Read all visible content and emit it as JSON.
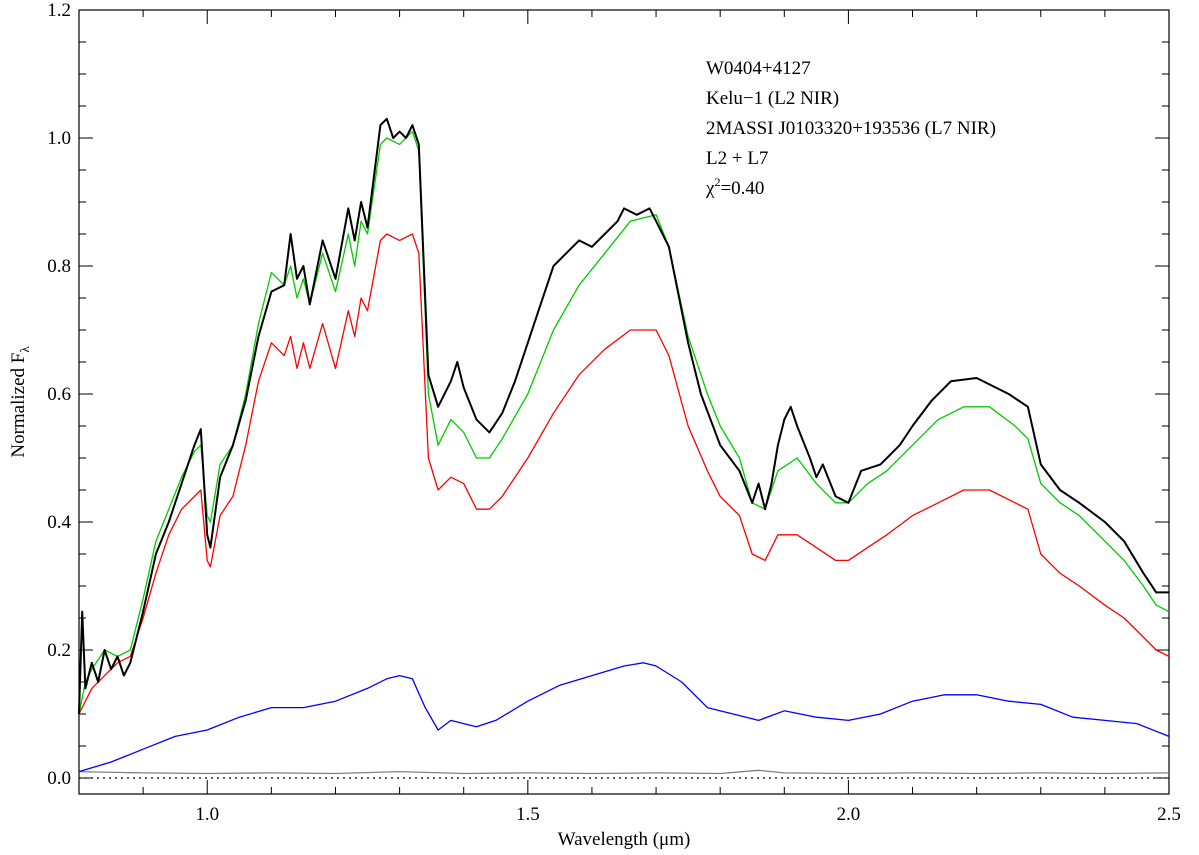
{
  "chart_data": {
    "type": "line",
    "title": "",
    "xlabel": "Wavelength (μm)",
    "ylabel_main": "Normalized F",
    "ylabel_sub": "λ",
    "xlim": [
      0.8,
      2.5
    ],
    "ylim": [
      -0.025,
      1.2
    ],
    "xticks": [
      1.0,
      1.5,
      2.0,
      2.5
    ],
    "xtick_labels": [
      "1.0",
      "1.5",
      "2.0",
      "2.5"
    ],
    "yticks": [
      0.0,
      0.2,
      0.4,
      0.6,
      0.8,
      1.0,
      1.2
    ],
    "ytick_labels": [
      "0.0",
      "0.2",
      "0.4",
      "0.6",
      "0.8",
      "1.0",
      "1.2"
    ],
    "legend_position": "top-right",
    "chi_label": "χ",
    "chi_sup": "2",
    "chi_value": "=0.40",
    "series": [
      {
        "name": "W0404+4127",
        "color": "#000000",
        "points": [
          [
            0.8,
            0.1
          ],
          [
            0.805,
            0.26
          ],
          [
            0.81,
            0.14
          ],
          [
            0.82,
            0.18
          ],
          [
            0.83,
            0.15
          ],
          [
            0.84,
            0.2
          ],
          [
            0.85,
            0.17
          ],
          [
            0.86,
            0.19
          ],
          [
            0.87,
            0.16
          ],
          [
            0.88,
            0.18
          ],
          [
            0.9,
            0.26
          ],
          [
            0.92,
            0.35
          ],
          [
            0.94,
            0.4
          ],
          [
            0.96,
            0.46
          ],
          [
            0.98,
            0.52
          ],
          [
            0.99,
            0.545
          ],
          [
            1.0,
            0.38
          ],
          [
            1.005,
            0.36
          ],
          [
            1.02,
            0.47
          ],
          [
            1.04,
            0.52
          ],
          [
            1.06,
            0.59
          ],
          [
            1.08,
            0.69
          ],
          [
            1.1,
            0.76
          ],
          [
            1.12,
            0.77
          ],
          [
            1.13,
            0.85
          ],
          [
            1.14,
            0.78
          ],
          [
            1.15,
            0.8
          ],
          [
            1.16,
            0.74
          ],
          [
            1.18,
            0.84
          ],
          [
            1.2,
            0.78
          ],
          [
            1.22,
            0.89
          ],
          [
            1.23,
            0.84
          ],
          [
            1.24,
            0.9
          ],
          [
            1.25,
            0.86
          ],
          [
            1.27,
            1.02
          ],
          [
            1.28,
            1.03
          ],
          [
            1.29,
            1.0
          ],
          [
            1.3,
            1.01
          ],
          [
            1.31,
            1.0
          ],
          [
            1.32,
            1.02
          ],
          [
            1.33,
            0.99
          ],
          [
            1.345,
            0.63
          ],
          [
            1.36,
            0.58
          ],
          [
            1.38,
            0.62
          ],
          [
            1.39,
            0.65
          ],
          [
            1.4,
            0.61
          ],
          [
            1.42,
            0.56
          ],
          [
            1.44,
            0.54
          ],
          [
            1.46,
            0.57
          ],
          [
            1.48,
            0.62
          ],
          [
            1.5,
            0.68
          ],
          [
            1.52,
            0.74
          ],
          [
            1.54,
            0.8
          ],
          [
            1.56,
            0.82
          ],
          [
            1.58,
            0.84
          ],
          [
            1.6,
            0.83
          ],
          [
            1.62,
            0.85
          ],
          [
            1.64,
            0.87
          ],
          [
            1.65,
            0.89
          ],
          [
            1.67,
            0.88
          ],
          [
            1.69,
            0.89
          ],
          [
            1.7,
            0.87
          ],
          [
            1.72,
            0.83
          ],
          [
            1.75,
            0.68
          ],
          [
            1.77,
            0.6
          ],
          [
            1.8,
            0.52
          ],
          [
            1.83,
            0.48
          ],
          [
            1.85,
            0.43
          ],
          [
            1.86,
            0.46
          ],
          [
            1.87,
            0.42
          ],
          [
            1.88,
            0.46
          ],
          [
            1.89,
            0.52
          ],
          [
            1.9,
            0.56
          ],
          [
            1.91,
            0.58
          ],
          [
            1.92,
            0.55
          ],
          [
            1.94,
            0.5
          ],
          [
            1.95,
            0.47
          ],
          [
            1.96,
            0.49
          ],
          [
            1.98,
            0.44
          ],
          [
            2.0,
            0.43
          ],
          [
            2.02,
            0.48
          ],
          [
            2.05,
            0.49
          ],
          [
            2.08,
            0.52
          ],
          [
            2.1,
            0.55
          ],
          [
            2.13,
            0.59
          ],
          [
            2.16,
            0.62
          ],
          [
            2.2,
            0.625
          ],
          [
            2.25,
            0.6
          ],
          [
            2.28,
            0.58
          ],
          [
            2.3,
            0.49
          ],
          [
            2.33,
            0.45
          ],
          [
            2.36,
            0.43
          ],
          [
            2.4,
            0.4
          ],
          [
            2.43,
            0.37
          ],
          [
            2.46,
            0.32
          ],
          [
            2.48,
            0.29
          ],
          [
            2.5,
            0.29
          ]
        ]
      },
      {
        "name": "Kelu−1 (L2 NIR)",
        "color": "#ff0000",
        "points": [
          [
            0.8,
            0.1
          ],
          [
            0.82,
            0.14
          ],
          [
            0.84,
            0.16
          ],
          [
            0.86,
            0.18
          ],
          [
            0.88,
            0.19
          ],
          [
            0.9,
            0.25
          ],
          [
            0.92,
            0.32
          ],
          [
            0.94,
            0.38
          ],
          [
            0.96,
            0.42
          ],
          [
            0.98,
            0.44
          ],
          [
            0.99,
            0.45
          ],
          [
            1.0,
            0.34
          ],
          [
            1.005,
            0.33
          ],
          [
            1.02,
            0.41
          ],
          [
            1.04,
            0.44
          ],
          [
            1.06,
            0.52
          ],
          [
            1.08,
            0.62
          ],
          [
            1.1,
            0.68
          ],
          [
            1.12,
            0.66
          ],
          [
            1.13,
            0.69
          ],
          [
            1.14,
            0.64
          ],
          [
            1.15,
            0.68
          ],
          [
            1.16,
            0.64
          ],
          [
            1.18,
            0.71
          ],
          [
            1.2,
            0.64
          ],
          [
            1.22,
            0.73
          ],
          [
            1.23,
            0.69
          ],
          [
            1.24,
            0.75
          ],
          [
            1.25,
            0.73
          ],
          [
            1.27,
            0.84
          ],
          [
            1.28,
            0.85
          ],
          [
            1.3,
            0.84
          ],
          [
            1.32,
            0.85
          ],
          [
            1.33,
            0.82
          ],
          [
            1.345,
            0.5
          ],
          [
            1.36,
            0.45
          ],
          [
            1.38,
            0.47
          ],
          [
            1.4,
            0.46
          ],
          [
            1.42,
            0.42
          ],
          [
            1.44,
            0.42
          ],
          [
            1.46,
            0.44
          ],
          [
            1.5,
            0.5
          ],
          [
            1.54,
            0.57
          ],
          [
            1.58,
            0.63
          ],
          [
            1.62,
            0.67
          ],
          [
            1.66,
            0.7
          ],
          [
            1.7,
            0.7
          ],
          [
            1.72,
            0.66
          ],
          [
            1.75,
            0.55
          ],
          [
            1.78,
            0.48
          ],
          [
            1.8,
            0.44
          ],
          [
            1.83,
            0.41
          ],
          [
            1.85,
            0.35
          ],
          [
            1.87,
            0.34
          ],
          [
            1.89,
            0.38
          ],
          [
            1.92,
            0.38
          ],
          [
            1.95,
            0.36
          ],
          [
            1.98,
            0.34
          ],
          [
            2.0,
            0.34
          ],
          [
            2.03,
            0.36
          ],
          [
            2.06,
            0.38
          ],
          [
            2.1,
            0.41
          ],
          [
            2.14,
            0.43
          ],
          [
            2.18,
            0.45
          ],
          [
            2.22,
            0.45
          ],
          [
            2.26,
            0.43
          ],
          [
            2.28,
            0.42
          ],
          [
            2.3,
            0.35
          ],
          [
            2.33,
            0.32
          ],
          [
            2.36,
            0.3
          ],
          [
            2.4,
            0.27
          ],
          [
            2.43,
            0.25
          ],
          [
            2.46,
            0.22
          ],
          [
            2.48,
            0.2
          ],
          [
            2.5,
            0.19
          ]
        ]
      },
      {
        "name": "2MASSI J0103320+193536 (L7 NIR)",
        "color": "#0000ff",
        "points": [
          [
            0.8,
            0.01
          ],
          [
            0.85,
            0.025
          ],
          [
            0.9,
            0.045
          ],
          [
            0.95,
            0.065
          ],
          [
            1.0,
            0.075
          ],
          [
            1.05,
            0.095
          ],
          [
            1.1,
            0.11
          ],
          [
            1.15,
            0.11
          ],
          [
            1.2,
            0.12
          ],
          [
            1.25,
            0.14
          ],
          [
            1.28,
            0.155
          ],
          [
            1.3,
            0.16
          ],
          [
            1.32,
            0.155
          ],
          [
            1.34,
            0.11
          ],
          [
            1.36,
            0.075
          ],
          [
            1.38,
            0.09
          ],
          [
            1.4,
            0.085
          ],
          [
            1.42,
            0.08
          ],
          [
            1.45,
            0.09
          ],
          [
            1.5,
            0.12
          ],
          [
            1.55,
            0.145
          ],
          [
            1.6,
            0.16
          ],
          [
            1.65,
            0.175
          ],
          [
            1.68,
            0.18
          ],
          [
            1.7,
            0.175
          ],
          [
            1.74,
            0.15
          ],
          [
            1.78,
            0.11
          ],
          [
            1.82,
            0.1
          ],
          [
            1.86,
            0.09
          ],
          [
            1.9,
            0.105
          ],
          [
            1.95,
            0.095
          ],
          [
            2.0,
            0.09
          ],
          [
            2.05,
            0.1
          ],
          [
            2.1,
            0.12
          ],
          [
            2.15,
            0.13
          ],
          [
            2.2,
            0.13
          ],
          [
            2.25,
            0.12
          ],
          [
            2.3,
            0.115
          ],
          [
            2.35,
            0.095
          ],
          [
            2.4,
            0.09
          ],
          [
            2.45,
            0.085
          ],
          [
            2.5,
            0.065
          ]
        ]
      },
      {
        "name": "L2 + L7",
        "color": "#00cc00",
        "points": [
          [
            0.8,
            0.1
          ],
          [
            0.81,
            0.15
          ],
          [
            0.82,
            0.17
          ],
          [
            0.84,
            0.2
          ],
          [
            0.86,
            0.19
          ],
          [
            0.88,
            0.2
          ],
          [
            0.9,
            0.28
          ],
          [
            0.92,
            0.37
          ],
          [
            0.94,
            0.42
          ],
          [
            0.96,
            0.47
          ],
          [
            0.98,
            0.51
          ],
          [
            0.99,
            0.52
          ],
          [
            1.0,
            0.41
          ],
          [
            1.005,
            0.4
          ],
          [
            1.02,
            0.49
          ],
          [
            1.04,
            0.52
          ],
          [
            1.06,
            0.6
          ],
          [
            1.08,
            0.71
          ],
          [
            1.1,
            0.79
          ],
          [
            1.12,
            0.77
          ],
          [
            1.13,
            0.8
          ],
          [
            1.14,
            0.75
          ],
          [
            1.15,
            0.78
          ],
          [
            1.16,
            0.74
          ],
          [
            1.18,
            0.82
          ],
          [
            1.2,
            0.76
          ],
          [
            1.22,
            0.85
          ],
          [
            1.23,
            0.8
          ],
          [
            1.24,
            0.87
          ],
          [
            1.25,
            0.85
          ],
          [
            1.27,
            0.99
          ],
          [
            1.28,
            1.0
          ],
          [
            1.3,
            0.99
          ],
          [
            1.32,
            1.01
          ],
          [
            1.33,
            0.98
          ],
          [
            1.345,
            0.6
          ],
          [
            1.36,
            0.52
          ],
          [
            1.38,
            0.56
          ],
          [
            1.4,
            0.54
          ],
          [
            1.42,
            0.5
          ],
          [
            1.44,
            0.5
          ],
          [
            1.46,
            0.53
          ],
          [
            1.5,
            0.6
          ],
          [
            1.54,
            0.7
          ],
          [
            1.58,
            0.77
          ],
          [
            1.62,
            0.82
          ],
          [
            1.66,
            0.87
          ],
          [
            1.7,
            0.88
          ],
          [
            1.72,
            0.83
          ],
          [
            1.75,
            0.69
          ],
          [
            1.78,
            0.6
          ],
          [
            1.8,
            0.55
          ],
          [
            1.83,
            0.5
          ],
          [
            1.85,
            0.43
          ],
          [
            1.87,
            0.42
          ],
          [
            1.89,
            0.48
          ],
          [
            1.92,
            0.5
          ],
          [
            1.95,
            0.46
          ],
          [
            1.98,
            0.43
          ],
          [
            2.0,
            0.43
          ],
          [
            2.03,
            0.46
          ],
          [
            2.06,
            0.48
          ],
          [
            2.1,
            0.52
          ],
          [
            2.14,
            0.56
          ],
          [
            2.18,
            0.58
          ],
          [
            2.22,
            0.58
          ],
          [
            2.26,
            0.55
          ],
          [
            2.28,
            0.53
          ],
          [
            2.3,
            0.46
          ],
          [
            2.33,
            0.43
          ],
          [
            2.36,
            0.41
          ],
          [
            2.4,
            0.37
          ],
          [
            2.43,
            0.34
          ],
          [
            2.46,
            0.3
          ],
          [
            2.48,
            0.27
          ],
          [
            2.5,
            0.26
          ]
        ]
      },
      {
        "name": "",
        "color": "#808080",
        "points": [
          [
            0.8,
            0.01
          ],
          [
            0.9,
            0.008
          ],
          [
            1.0,
            0.007
          ],
          [
            1.1,
            0.008
          ],
          [
            1.2,
            0.007
          ],
          [
            1.3,
            0.01
          ],
          [
            1.4,
            0.007
          ],
          [
            1.5,
            0.008
          ],
          [
            1.6,
            0.007
          ],
          [
            1.7,
            0.008
          ],
          [
            1.8,
            0.007
          ],
          [
            1.86,
            0.012
          ],
          [
            1.9,
            0.008
          ],
          [
            2.0,
            0.007
          ],
          [
            2.1,
            0.008
          ],
          [
            2.2,
            0.007
          ],
          [
            2.3,
            0.008
          ],
          [
            2.4,
            0.007
          ],
          [
            2.5,
            0.008
          ]
        ]
      }
    ],
    "reference_line": {
      "y": 0.0,
      "style": "dotted",
      "color": "#000000"
    }
  }
}
